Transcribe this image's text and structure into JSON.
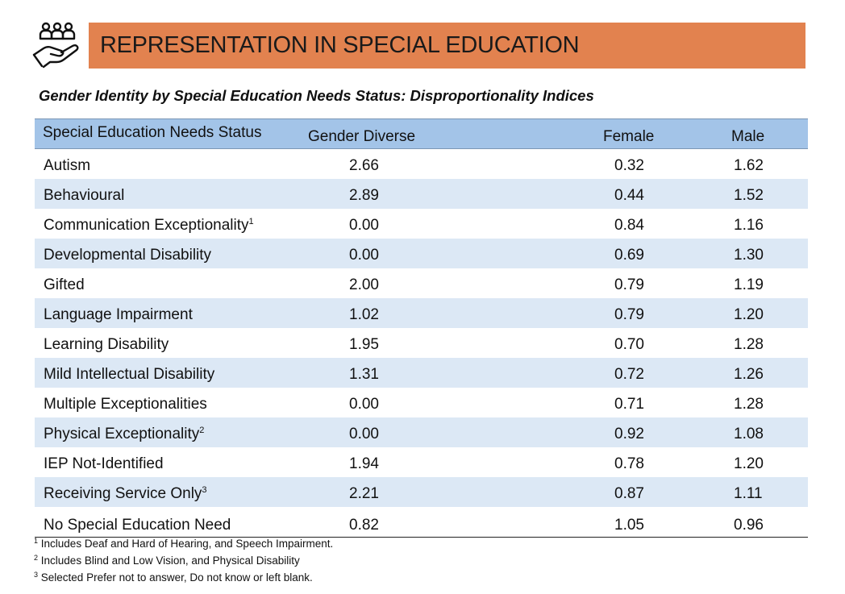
{
  "icon": "people-hand-icon",
  "banner": {
    "title": "REPRESENTATION IN SPECIAL EDUCATION",
    "color": "#e2824f"
  },
  "subtitle": "Gender Identity by Special Education Needs Status: Disproportionality Indices",
  "table": {
    "header_color": "#a3c4e8",
    "stripe_color": "#dce8f5",
    "columns": [
      "Special Education Needs Status",
      "Gender Diverse",
      "Female",
      "Male"
    ],
    "rows": [
      {
        "status": "Autism",
        "note": "",
        "gender_diverse": "2.66",
        "female": "0.32",
        "male": "1.62"
      },
      {
        "status": "Behavioural",
        "note": "",
        "gender_diverse": "2.89",
        "female": "0.44",
        "male": "1.52"
      },
      {
        "status": "Communication Exceptionality",
        "note": "1",
        "gender_diverse": "0.00",
        "female": "0.84",
        "male": "1.16"
      },
      {
        "status": "Developmental Disability",
        "note": "",
        "gender_diverse": "0.00",
        "female": "0.69",
        "male": "1.30"
      },
      {
        "status": "Gifted",
        "note": "",
        "gender_diverse": "2.00",
        "female": "0.79",
        "male": "1.19"
      },
      {
        "status": "Language Impairment",
        "note": "",
        "gender_diverse": "1.02",
        "female": "0.79",
        "male": "1.20"
      },
      {
        "status": "Learning Disability",
        "note": "",
        "gender_diverse": "1.95",
        "female": "0.70",
        "male": "1.28"
      },
      {
        "status": "Mild Intellectual Disability",
        "note": "",
        "gender_diverse": "1.31",
        "female": "0.72",
        "male": "1.26"
      },
      {
        "status": "Multiple Exceptionalities",
        "note": "",
        "gender_diverse": "0.00",
        "female": "0.71",
        "male": "1.28"
      },
      {
        "status": "Physical Exceptionality",
        "note": "2",
        "gender_diverse": "0.00",
        "female": "0.92",
        "male": "1.08"
      },
      {
        "status": "IEP Not-Identified",
        "note": "",
        "gender_diverse": "1.94",
        "female": "0.78",
        "male": "1.20"
      },
      {
        "status": "Receiving Service Only",
        "note": "3",
        "gender_diverse": "2.21",
        "female": "0.87",
        "male": "1.11"
      },
      {
        "status": "No Special Education Need",
        "note": "",
        "gender_diverse": "0.82",
        "female": "1.05",
        "male": "0.96"
      }
    ]
  },
  "footnotes": [
    {
      "mark": "1",
      "text": "Includes Deaf and Hard of Hearing, and Speech Impairment."
    },
    {
      "mark": "2",
      "text": "Includes Blind and Low Vision, and Physical Disability"
    },
    {
      "mark": "3",
      "text": "Selected Prefer not to answer, Do not know or left blank."
    }
  ]
}
